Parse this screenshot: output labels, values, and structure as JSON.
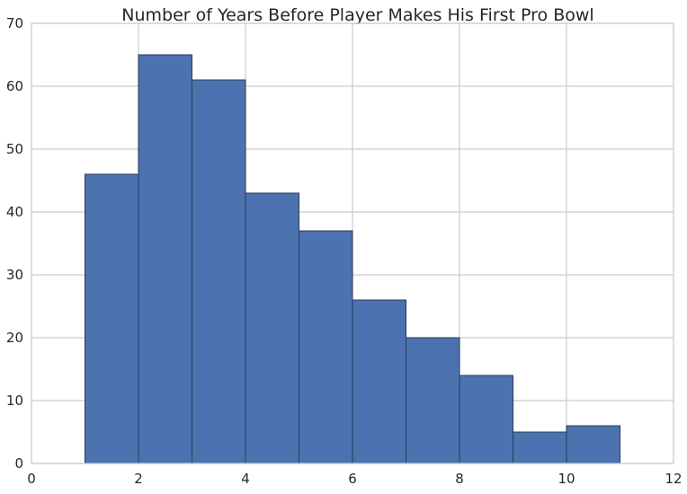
{
  "chart_data": {
    "type": "bar",
    "title": "Number of Years Before Player Makes His First Pro Bowl",
    "xlabel": "",
    "ylabel": "",
    "xlim": [
      0,
      12
    ],
    "ylim": [
      0,
      70
    ],
    "xticks": [
      0,
      2,
      4,
      6,
      8,
      10,
      12
    ],
    "yticks": [
      0,
      10,
      20,
      30,
      40,
      50,
      60,
      70
    ],
    "grid": true,
    "bins": [
      {
        "start": 1,
        "end": 2,
        "value": 46
      },
      {
        "start": 2,
        "end": 3,
        "value": 65
      },
      {
        "start": 3,
        "end": 4,
        "value": 61
      },
      {
        "start": 4,
        "end": 5,
        "value": 43
      },
      {
        "start": 5,
        "end": 6,
        "value": 37
      },
      {
        "start": 6,
        "end": 7,
        "value": 26
      },
      {
        "start": 7,
        "end": 8,
        "value": 20
      },
      {
        "start": 8,
        "end": 9,
        "value": 14
      },
      {
        "start": 9,
        "end": 10,
        "value": 5
      },
      {
        "start": 10,
        "end": 11,
        "value": 6
      }
    ],
    "colors": {
      "bar": "#4c72b0",
      "edge": "#2b3b57",
      "grid": "#cccccc",
      "background": "#ffffff",
      "text": "#262626"
    }
  }
}
